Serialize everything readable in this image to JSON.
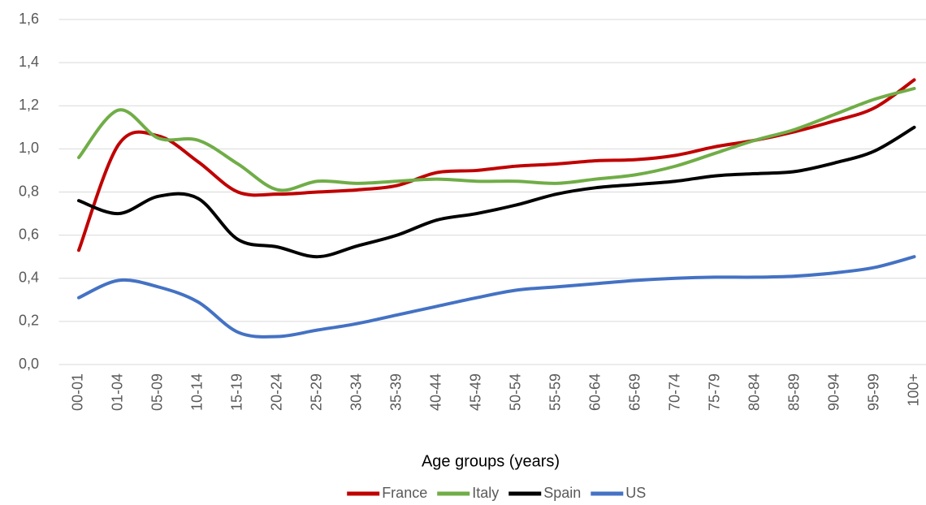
{
  "chart_data": {
    "type": "line",
    "x_label": "Age groups (years)",
    "categories": [
      "00-01",
      "01-04",
      "05-09",
      "10-14",
      "15-19",
      "20-24",
      "25-29",
      "30-34",
      "35-39",
      "40-44",
      "45-49",
      "50-54",
      "55-59",
      "60-64",
      "65-69",
      "70-74",
      "75-79",
      "80-84",
      "85-89",
      "90-94",
      "95-99",
      "100+"
    ],
    "series": [
      {
        "name": "France",
        "color": "#c00000",
        "values": [
          0.53,
          1.02,
          1.06,
          0.94,
          0.8,
          0.79,
          0.8,
          0.81,
          0.83,
          0.89,
          0.9,
          0.92,
          0.93,
          0.945,
          0.95,
          0.97,
          1.01,
          1.04,
          1.08,
          1.13,
          1.19,
          1.32
        ]
      },
      {
        "name": "Italy",
        "color": "#70ad47",
        "values": [
          0.96,
          1.18,
          1.05,
          1.04,
          0.93,
          0.81,
          0.85,
          0.84,
          0.85,
          0.86,
          0.85,
          0.85,
          0.84,
          0.86,
          0.88,
          0.92,
          0.98,
          1.04,
          1.09,
          1.16,
          1.23,
          1.28
        ]
      },
      {
        "name": "Spain",
        "color": "#000000",
        "values": [
          0.76,
          0.7,
          0.78,
          0.77,
          0.58,
          0.545,
          0.5,
          0.55,
          0.6,
          0.67,
          0.7,
          0.74,
          0.79,
          0.82,
          0.835,
          0.85,
          0.875,
          0.885,
          0.895,
          0.935,
          0.99,
          1.1
        ]
      },
      {
        "name": "US",
        "color": "#4472c4",
        "values": [
          0.31,
          0.39,
          0.36,
          0.29,
          0.15,
          0.13,
          0.16,
          0.19,
          0.23,
          0.27,
          0.31,
          0.345,
          0.36,
          0.375,
          0.39,
          0.4,
          0.405,
          0.405,
          0.41,
          0.425,
          0.45,
          0.5
        ]
      }
    ],
    "ylim": [
      0,
      1.6
    ],
    "yticks": [
      {
        "value": 0,
        "label": "0,0"
      },
      {
        "value": 0.2,
        "label": "0,2"
      },
      {
        "value": 0.4,
        "label": "0,4"
      },
      {
        "value": 0.6,
        "label": "0,6"
      },
      {
        "value": 0.8,
        "label": "0,8"
      },
      {
        "value": 1.0,
        "label": "1,0"
      },
      {
        "value": 1.2,
        "label": "1,2"
      },
      {
        "value": 1.4,
        "label": "1,4"
      },
      {
        "value": 1.6,
        "label": "1,6"
      }
    ],
    "grid": true,
    "legend": "bottom"
  }
}
